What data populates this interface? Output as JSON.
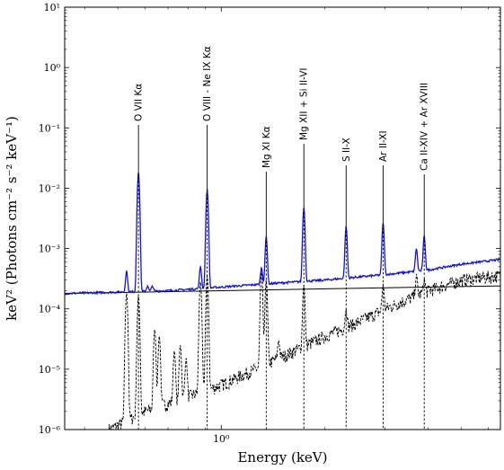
{
  "chart_data": {
    "type": "line",
    "xlabel": "Energy (keV)",
    "ylabel": "keV² (Photons cm⁻² s⁻² keV⁻¹)",
    "xscale": "log",
    "yscale": "log",
    "xlim": [
      0.35,
      6.5
    ],
    "ylim": [
      1e-06,
      10
    ],
    "grid": false,
    "x_ticks": [
      {
        "value": 1,
        "label": "10⁰"
      }
    ],
    "y_ticks": [
      {
        "value": 1e-06,
        "label": "10⁻⁶"
      },
      {
        "value": 1e-05,
        "label": "10⁻⁵"
      },
      {
        "value": 0.0001,
        "label": "10⁻⁴"
      },
      {
        "value": 0.001,
        "label": "10⁻³"
      },
      {
        "value": 0.01,
        "label": "10⁻²"
      },
      {
        "value": 0.1,
        "label": "10⁻¹"
      },
      {
        "value": 1,
        "label": "10⁰"
      },
      {
        "value": 10,
        "label": "10¹"
      }
    ],
    "line_annotations": [
      {
        "label": "O VII Kα",
        "energy": 0.574
      },
      {
        "label": "O VIII - Ne IX Kα",
        "energy": 0.91
      },
      {
        "label": "Mg XI Kα",
        "energy": 1.352
      },
      {
        "label": "Mg XII + Si II-VI",
        "energy": 1.74
      },
      {
        "label": "S II-X",
        "energy": 2.31
      },
      {
        "label": "Ar II-XI",
        "energy": 2.96
      },
      {
        "label": "Ca II-XIV + Ar XVIII",
        "energy": 3.9
      }
    ],
    "series": [
      {
        "style": "solid",
        "color": "#1515cc",
        "continuum": [
          [
            0.35,
            0.00018
          ],
          [
            0.7,
            0.0002
          ],
          [
            1.0,
            0.00023
          ],
          [
            1.5,
            0.00027
          ],
          [
            2.0,
            0.0003
          ],
          [
            3.0,
            0.00037
          ],
          [
            4.0,
            0.00044
          ],
          [
            5.0,
            0.00055
          ],
          [
            6.5,
            0.00066
          ]
        ],
        "peaks": [
          [
            0.53,
            0.00042
          ],
          [
            0.574,
            0.018
          ],
          [
            0.61,
            0.00024
          ],
          [
            0.63,
            0.00024
          ],
          [
            0.87,
            0.0005
          ],
          [
            0.91,
            0.0095
          ],
          [
            1.31,
            0.00048
          ],
          [
            1.352,
            0.00155
          ],
          [
            1.74,
            0.0047
          ],
          [
            2.31,
            0.0023
          ],
          [
            2.96,
            0.0026
          ],
          [
            3.7,
            0.001
          ],
          [
            3.9,
            0.0016
          ]
        ]
      },
      {
        "style": "solid",
        "color": "#000000",
        "continuum": [
          [
            0.35,
            0.00018
          ],
          [
            1.0,
            0.0002
          ],
          [
            2.0,
            0.000215
          ],
          [
            4.0,
            0.00023
          ],
          [
            6.5,
            0.00024
          ]
        ],
        "peaks": []
      },
      {
        "style": "dashed",
        "color": "#000000",
        "continuum": [
          [
            0.47,
            1e-06
          ],
          [
            0.6,
            2e-06
          ],
          [
            0.8,
            3.5e-06
          ],
          [
            1.0,
            5.5e-06
          ],
          [
            1.5,
            1.6e-05
          ],
          [
            2.0,
            3.5e-05
          ],
          [
            2.5,
            6e-05
          ],
          [
            3.0,
            0.0001
          ],
          [
            4.0,
            0.0002
          ],
          [
            5.0,
            0.0003
          ],
          [
            6.5,
            0.00036
          ]
        ],
        "peaks": [
          [
            0.53,
            0.00018
          ],
          [
            0.574,
            0.00016
          ],
          [
            0.64,
            4.5e-05
          ],
          [
            0.66,
            3.5e-05
          ],
          [
            0.73,
            2e-05
          ],
          [
            0.76,
            2.5e-05
          ],
          [
            0.79,
            1.5e-05
          ],
          [
            0.87,
            0.00028
          ],
          [
            0.91,
            0.00035
          ],
          [
            1.31,
            0.0004
          ],
          [
            1.352,
            0.0003
          ],
          [
            1.47,
            3e-05
          ],
          [
            1.74,
            0.00025
          ],
          [
            2.31,
            0.0001
          ],
          [
            2.96,
            0.00025
          ],
          [
            3.7,
            0.00035
          ],
          [
            3.9,
            0.0003
          ]
        ]
      }
    ]
  }
}
